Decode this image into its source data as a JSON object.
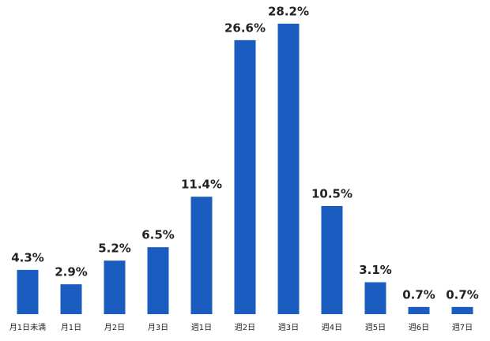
{
  "chart_data": {
    "type": "bar",
    "categories": [
      "月1日未満",
      "月1日",
      "月2日",
      "月3日",
      "週1日",
      "週2日",
      "週3日",
      "週4日",
      "週5日",
      "週6日",
      "週7日"
    ],
    "values": [
      4.3,
      2.9,
      5.2,
      6.5,
      11.4,
      26.6,
      28.2,
      10.5,
      3.1,
      0.7,
      0.7
    ],
    "value_labels": [
      "4.3%",
      "2.9%",
      "5.2%",
      "6.5%",
      "11.4%",
      "26.6%",
      "28.2%",
      "10.5%",
      "3.1%",
      "0.7%",
      "0.7%"
    ],
    "color": "#1a5cbf"
  }
}
